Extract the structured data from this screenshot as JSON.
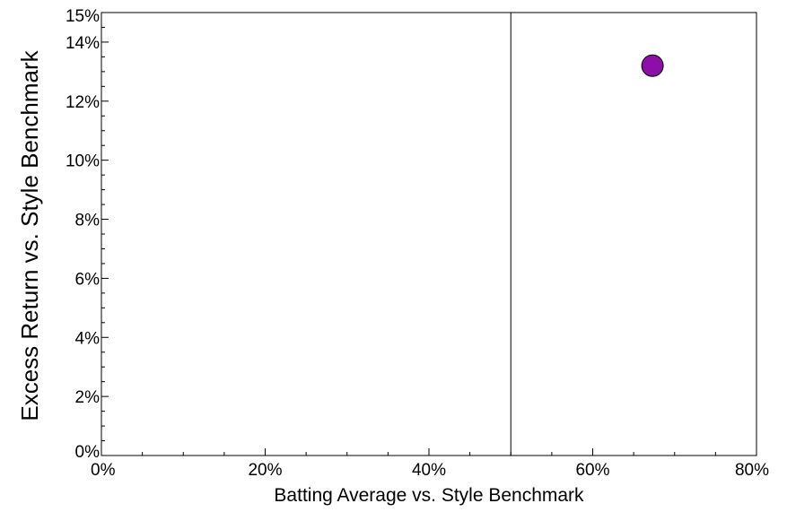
{
  "chart_data": {
    "type": "scatter",
    "title": "",
    "xlabel": "Batting Average vs. Style Benchmark",
    "ylabel": "Excess Return vs. Style Benchmark",
    "xlim": [
      0,
      80
    ],
    "ylim": [
      0,
      15
    ],
    "x_ticks": [
      0,
      20,
      40,
      60,
      80
    ],
    "x_tick_labels": [
      "0%",
      "20%",
      "40%",
      "60%",
      "80%"
    ],
    "x_minor_step": 5,
    "y_ticks": [
      0,
      2,
      4,
      6,
      8,
      10,
      12,
      14,
      15
    ],
    "y_tick_labels": [
      "0%",
      "2%",
      "4%",
      "6%",
      "8%",
      "10%",
      "12%",
      "14%",
      "15%"
    ],
    "y_minor_step": 0.5,
    "grid": false,
    "reference_lines": [
      {
        "axis": "x",
        "value": 50,
        "color": "#000000"
      }
    ],
    "series": [
      {
        "points": [
          {
            "x": 67.3,
            "y": 13.2
          }
        ],
        "color": "#8b0fa8",
        "edge_color": "#000000"
      }
    ]
  }
}
